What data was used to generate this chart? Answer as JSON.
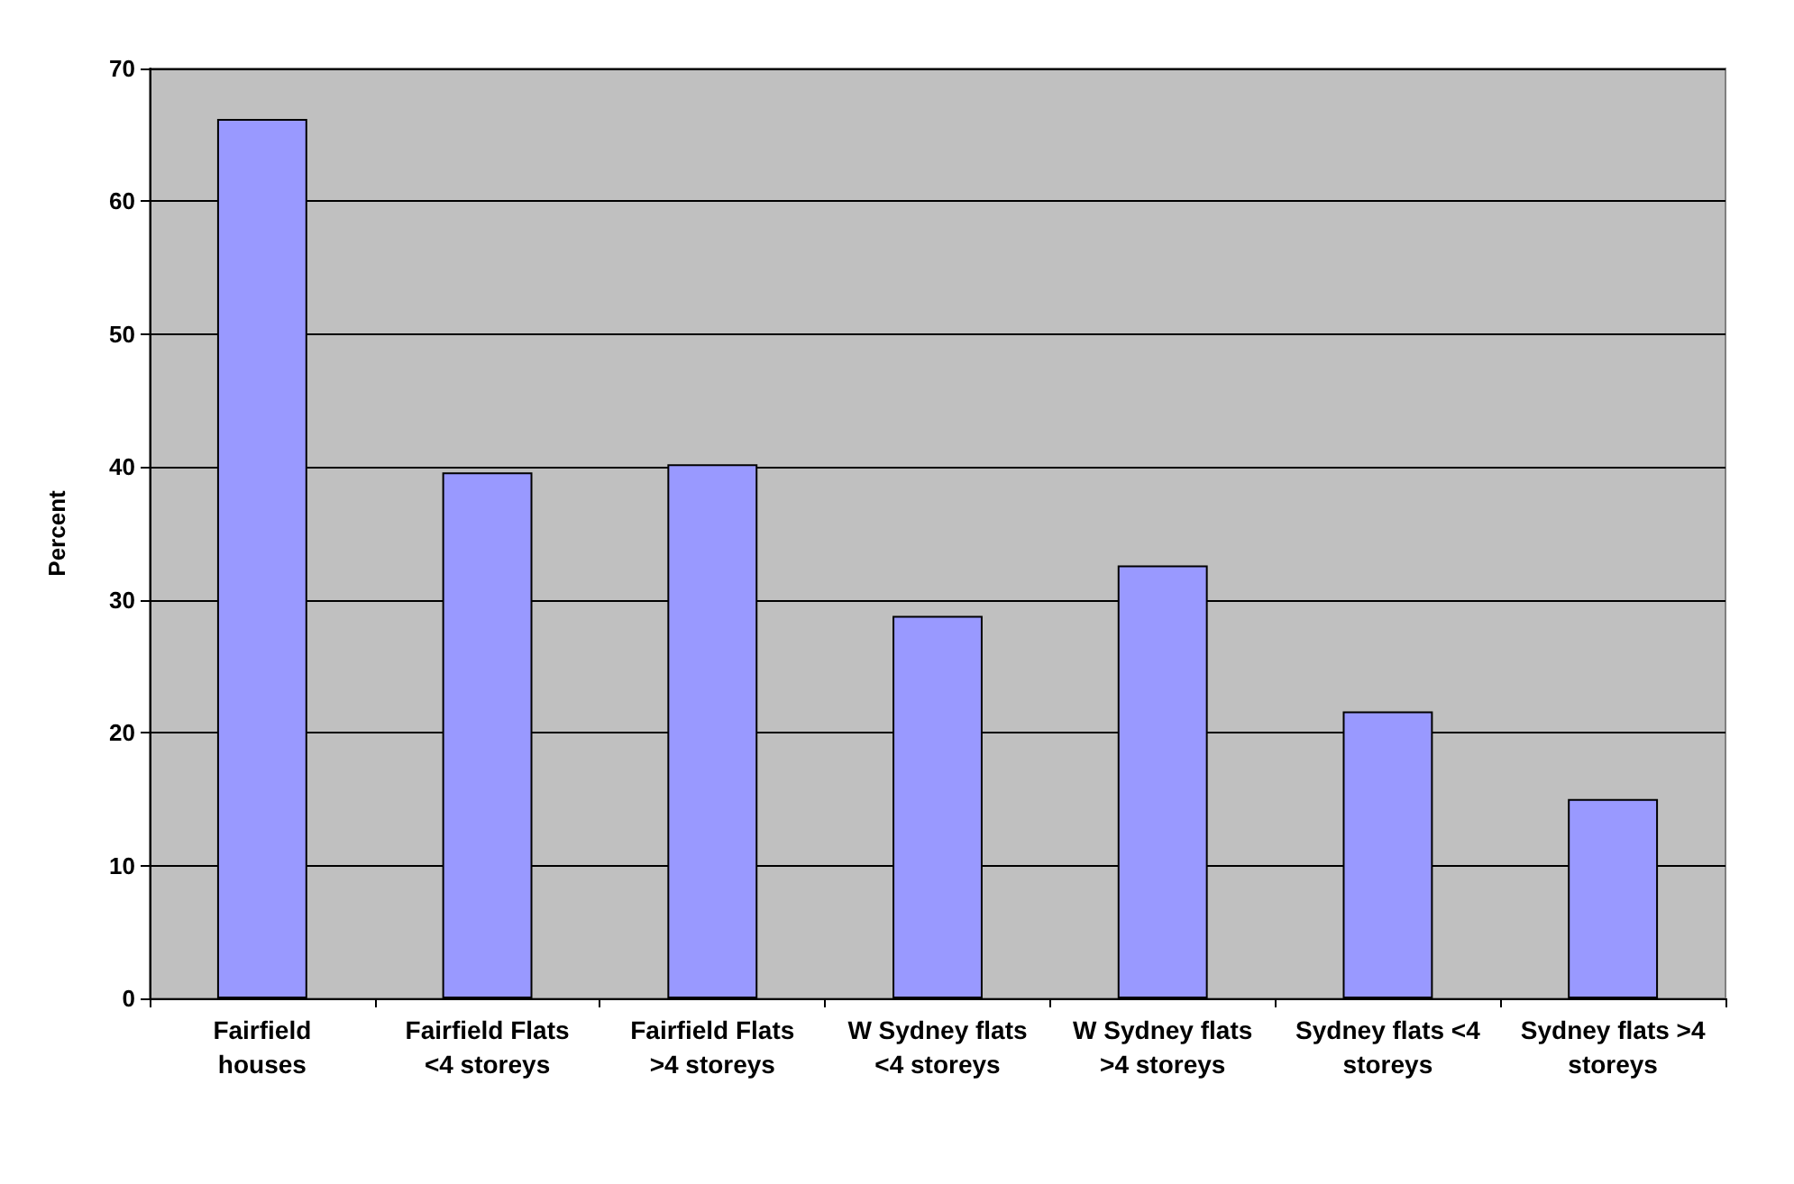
{
  "chart_data": {
    "type": "bar",
    "ylabel": "Percent",
    "categories": [
      "Fairfield houses",
      "Fairfield Flats <4 storeys",
      "Fairfield Flats >4 storeys",
      "W Sydney flats <4 storeys",
      "W Sydney flats >4 storeys",
      "Sydney flats <4 storeys",
      "Sydney flats >4 storeys"
    ],
    "values": [
      66.2,
      39.6,
      40.2,
      28.8,
      32.6,
      21.6,
      15.0
    ],
    "color": "#9999ff",
    "ylim": [
      0,
      70
    ],
    "yticks": [
      0,
      10,
      20,
      30,
      40,
      50,
      60,
      70
    ],
    "grid": "y"
  }
}
